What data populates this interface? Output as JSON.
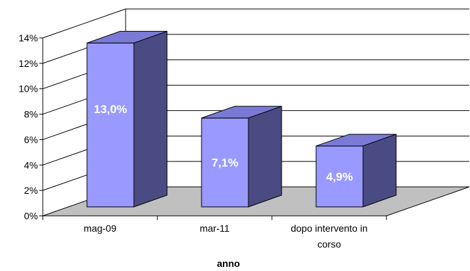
{
  "chart_data": {
    "type": "bar",
    "categories": [
      "mag-09",
      "mar-11",
      "dopo intervento in corso"
    ],
    "category_label_lines": [
      [
        "mag-09"
      ],
      [
        "mar-11"
      ],
      [
        "dopo intervento in",
        "corso"
      ]
    ],
    "values": [
      13.0,
      7.1,
      4.9
    ],
    "data_labels": [
      "13,0%",
      "7,1%",
      "4,9%"
    ],
    "xlabel": "anno",
    "ylabel": "",
    "ylim": [
      0,
      14
    ],
    "yticks": [
      "0%",
      "2%",
      "4%",
      "6%",
      "8%",
      "10%",
      "12%",
      "14%"
    ],
    "grid": true,
    "style": "3d",
    "colors": {
      "bar_front": "#9999FF",
      "bar_top": "#7A7AD6",
      "bar_side": "#4B4B84",
      "floor": "#C0C0C0",
      "grid": "#000000"
    }
  }
}
